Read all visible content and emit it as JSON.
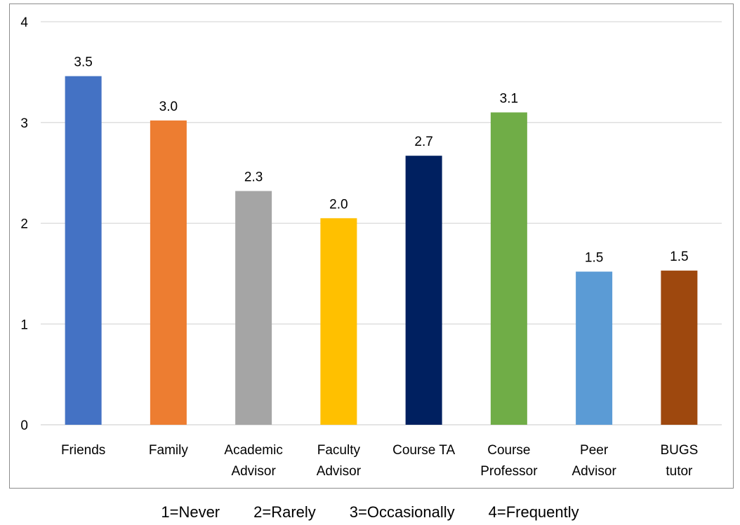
{
  "chart_data": {
    "type": "bar",
    "categories": [
      [
        "Friends"
      ],
      [
        "Family"
      ],
      [
        "Academic",
        "Advisor"
      ],
      [
        "Faculty",
        "Advisor"
      ],
      [
        "Course TA"
      ],
      [
        "Course",
        "Professor"
      ],
      [
        "Peer",
        "Advisor"
      ],
      [
        "BUGS",
        "tutor"
      ]
    ],
    "values": [
      3.46,
      3.02,
      2.32,
      2.05,
      2.67,
      3.1,
      1.52,
      1.53
    ],
    "data_labels": [
      "3.5",
      "3.0",
      "2.3",
      "2.0",
      "2.7",
      "3.1",
      "1.5",
      "1.5"
    ],
    "colors": [
      "#4472c4",
      "#ed7d31",
      "#a5a5a5",
      "#ffc000",
      "#002060",
      "#70ad47",
      "#5b9bd5",
      "#9e480e"
    ],
    "ylim": [
      0,
      4
    ],
    "yticks": [
      "0",
      "1",
      "2",
      "3",
      "4"
    ],
    "grid": true,
    "gridline_color": "#d9d9d9",
    "title": "",
    "xlabel": "",
    "ylabel": ""
  },
  "caption": {
    "items": [
      "1=Never",
      "2=Rarely",
      "3=Occasionally",
      "4=Frequently"
    ]
  }
}
